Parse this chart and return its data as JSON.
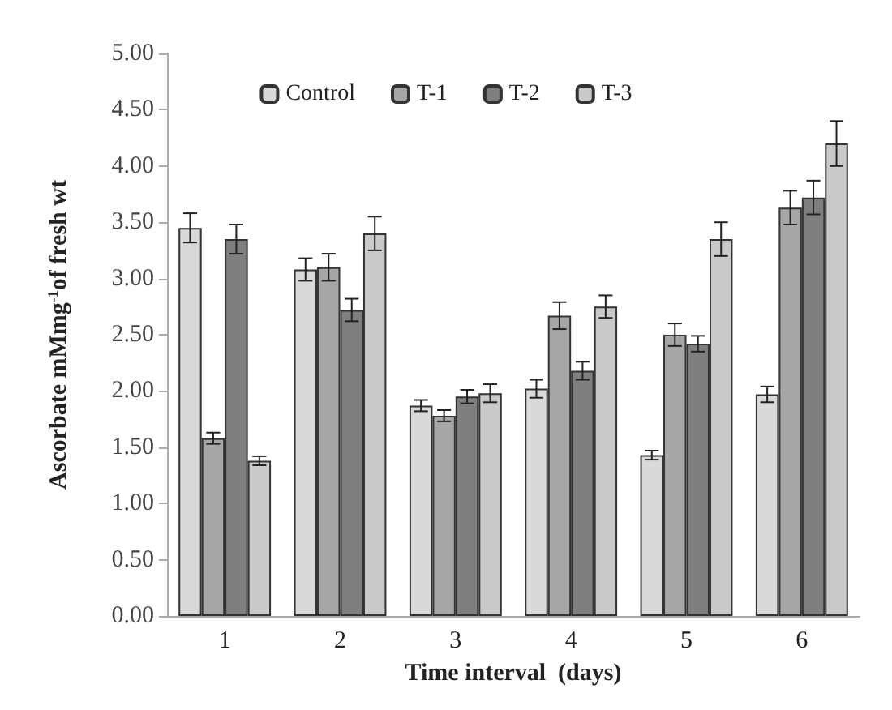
{
  "chart_data": {
    "type": "bar",
    "xlabel": "Time interval  (days)",
    "ylabel": "Ascorbate mMmg$^{-1}$of fresh wt",
    "categories": [
      "1",
      "2",
      "3",
      "4",
      "5",
      "6"
    ],
    "series": [
      {
        "name": "Control",
        "color": "#d9d9d9",
        "values": [
          3.45,
          3.08,
          1.87,
          2.02,
          1.43,
          1.97
        ],
        "errors": [
          0.13,
          0.1,
          0.05,
          0.08,
          0.04,
          0.07
        ]
      },
      {
        "name": "T-1",
        "color": "#a6a6a6",
        "values": [
          1.58,
          3.1,
          1.78,
          2.67,
          2.5,
          3.63
        ],
        "errors": [
          0.05,
          0.12,
          0.05,
          0.12,
          0.1,
          0.15
        ]
      },
      {
        "name": "T-2",
        "color": "#7f7f7f",
        "values": [
          3.35,
          2.72,
          1.95,
          2.18,
          2.42,
          3.72
        ],
        "errors": [
          0.13,
          0.1,
          0.06,
          0.08,
          0.07,
          0.15
        ]
      },
      {
        "name": "T-3",
        "color": "#c9c9c9",
        "values": [
          1.38,
          3.4,
          1.98,
          2.75,
          3.35,
          4.2
        ],
        "errors": [
          0.04,
          0.15,
          0.08,
          0.1,
          0.15,
          0.2
        ]
      }
    ],
    "ylim": [
      0,
      5
    ],
    "yticks": [
      {
        "value": 0,
        "label": "0.00"
      },
      {
        "value": 0.5,
        "label": "0.50"
      },
      {
        "value": 1,
        "label": "1.00"
      },
      {
        "value": 1.5,
        "label": "1.50"
      },
      {
        "value": 2,
        "label": "2.00"
      },
      {
        "value": 2.5,
        "label": "2.50"
      },
      {
        "value": 3,
        "label": "3.00"
      },
      {
        "value": 3.5,
        "label": "3.50"
      },
      {
        "value": 4,
        "label": "4.00"
      },
      {
        "value": 4.5,
        "label": "4.50"
      },
      {
        "value": 5,
        "label": "5.00"
      }
    ],
    "grid": false,
    "legend": "top"
  }
}
